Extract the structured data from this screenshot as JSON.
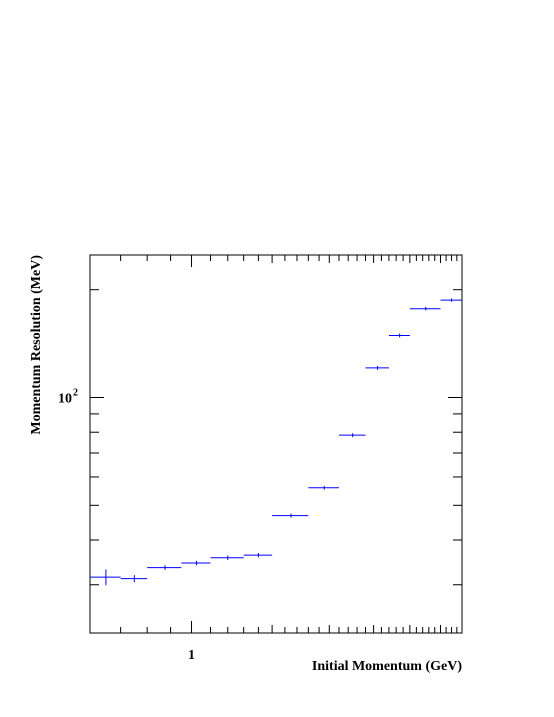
{
  "chart_data": {
    "type": "scatter",
    "title": "",
    "xlabel": "Initial Momentum (GeV)",
    "ylabel": "Momentum Resolution (MeV)",
    "x_scale": "log",
    "y_scale": "log",
    "xlim": [
      0.6,
      3.9
    ],
    "ylim": [
      22,
      250
    ],
    "x_tick_labels": [
      {
        "value": 1,
        "label": "1"
      }
    ],
    "y_tick_labels": [
      {
        "value": 100,
        "label": "10 2"
      }
    ],
    "grid": false,
    "legend": "none",
    "colors": {
      "markers": "#0000ff",
      "frame": "#000000"
    },
    "series": [
      {
        "points": [
          {
            "x": 0.65,
            "xlo": 0.6,
            "xhi": 0.7,
            "y": 31.5,
            "yerr": 1.6
          },
          {
            "x": 0.75,
            "xlo": 0.7,
            "xhi": 0.8,
            "y": 31.2,
            "yerr": 0.7
          },
          {
            "x": 0.875,
            "xlo": 0.8,
            "xhi": 0.95,
            "y": 33.5,
            "yerr": 0.5
          },
          {
            "x": 1.025,
            "xlo": 0.95,
            "xhi": 1.1,
            "y": 34.5,
            "yerr": 0.5
          },
          {
            "x": 1.2,
            "xlo": 1.1,
            "xhi": 1.3,
            "y": 35.7,
            "yerr": 0.5
          },
          {
            "x": 1.4,
            "xlo": 1.3,
            "xhi": 1.5,
            "y": 36.3,
            "yerr": 0.5
          },
          {
            "x": 1.65,
            "xlo": 1.5,
            "xhi": 1.8,
            "y": 46.8,
            "yerr": 0.6
          },
          {
            "x": 1.95,
            "xlo": 1.8,
            "xhi": 2.1,
            "y": 56.0,
            "yerr": 0.7
          },
          {
            "x": 2.25,
            "xlo": 2.1,
            "xhi": 2.4,
            "y": 78.5,
            "yerr": 1.0
          },
          {
            "x": 2.55,
            "xlo": 2.4,
            "xhi": 2.7,
            "y": 121.0,
            "yerr": 1.5
          },
          {
            "x": 2.85,
            "xlo": 2.7,
            "xhi": 3.0,
            "y": 149.0,
            "yerr": 1.8
          },
          {
            "x": 3.25,
            "xlo": 3.0,
            "xhi": 3.5,
            "y": 177.0,
            "yerr": 2.0
          },
          {
            "x": 3.7,
            "xlo": 3.5,
            "xhi": 3.9,
            "y": 187.0,
            "yerr": 2.0
          }
        ]
      }
    ]
  }
}
